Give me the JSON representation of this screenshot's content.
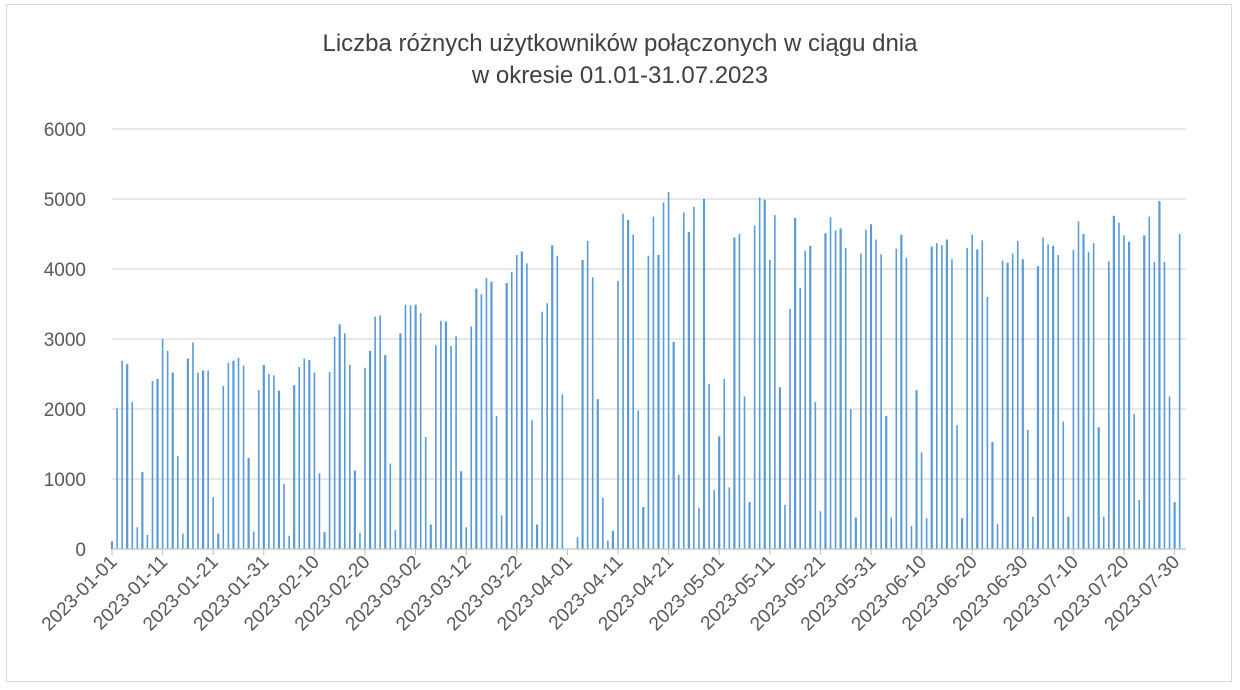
{
  "chart_data": {
    "type": "bar",
    "title": "Liczba różnych użytkowników połączonych w ciągu dnia",
    "subtitle": "w okresie 01.01-31.07.2023",
    "xlabel": "",
    "ylabel": "",
    "ylim": [
      0,
      6000
    ],
    "yticks": [
      0,
      1000,
      2000,
      3000,
      4000,
      5000,
      6000
    ],
    "grid": true,
    "legend": "none",
    "bar_color": "#5b9bd5",
    "start_date": "2023-01-01",
    "xtick_labels": [
      "2023-01-01",
      "2023-01-11",
      "2023-01-21",
      "2023-01-31",
      "2023-02-10",
      "2023-02-20",
      "2023-03-02",
      "2023-03-12",
      "2023-03-22",
      "2023-04-01",
      "2023-04-11",
      "2023-04-21",
      "2023-05-01",
      "2023-05-11",
      "2023-05-21",
      "2023-05-31",
      "2023-06-10",
      "2023-06-20",
      "2023-06-30",
      "2023-07-10",
      "2023-07-20",
      "2023-07-30"
    ],
    "values": [
      110,
      2010,
      2690,
      2640,
      2100,
      310,
      1100,
      200,
      2400,
      2430,
      3000,
      2830,
      2520,
      1330,
      220,
      2720,
      2950,
      2520,
      2550,
      2550,
      740,
      220,
      2330,
      2660,
      2690,
      2730,
      2620,
      1300,
      250,
      2270,
      2630,
      2500,
      2480,
      2260,
      930,
      190,
      2340,
      2600,
      2720,
      2700,
      2520,
      1080,
      240,
      2530,
      3030,
      3210,
      3080,
      2630,
      1120,
      230,
      2590,
      2830,
      3320,
      3340,
      2770,
      1220,
      270,
      3080,
      3490,
      3480,
      3490,
      3370,
      1600,
      350,
      2910,
      3260,
      3250,
      2900,
      3040,
      1110,
      310,
      3180,
      3720,
      3640,
      3870,
      3820,
      1900,
      480,
      3800,
      3960,
      4200,
      4250,
      4080,
      1840,
      350,
      3390,
      3510,
      4340,
      4190,
      2210,
      0,
      0,
      170,
      4130,
      4400,
      3880,
      2140,
      730,
      120,
      260,
      3830,
      4790,
      4700,
      4490,
      1980,
      600,
      4190,
      4750,
      4200,
      4950,
      5100,
      2960,
      1060,
      4810,
      4530,
      4890,
      590,
      5000,
      2360,
      840,
      1610,
      2430,
      880,
      4450,
      4500,
      2180,
      670,
      4620,
      5020,
      4990,
      4130,
      4770,
      2310,
      630,
      3430,
      4730,
      3730,
      4260,
      4330,
      2100,
      540,
      4510,
      4740,
      4550,
      4580,
      4300,
      2000,
      450,
      4220,
      4560,
      4640,
      4420,
      4210,
      1900,
      450,
      4290,
      4490,
      4160,
      330,
      2270,
      1380,
      440,
      4320,
      4370,
      4340,
      4420,
      4140,
      1770,
      440,
      4300,
      4490,
      4280,
      4410,
      3600,
      1530,
      360,
      4120,
      4090,
      4220,
      4400,
      4140,
      1700,
      460,
      4040,
      4450,
      4350,
      4330,
      4200,
      1820,
      460,
      4270,
      4680,
      4500,
      4240,
      4370,
      1740,
      460,
      4110,
      4760,
      4660,
      4480,
      4390,
      1930,
      700,
      4480,
      4750,
      4100,
      4970,
      4100,
      2180,
      670,
      4500
    ]
  }
}
